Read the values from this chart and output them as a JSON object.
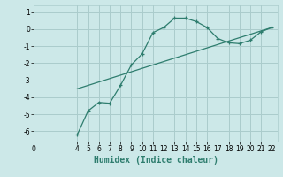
{
  "title": "",
  "xlabel": "Humidex (Indice chaleur)",
  "background_color": "#cce8e8",
  "grid_color": "#aacccc",
  "line_color": "#2e7d6e",
  "xlim": [
    0,
    22.5
  ],
  "ylim": [
    -6.6,
    1.4
  ],
  "xticks": [
    0,
    4,
    5,
    6,
    7,
    8,
    9,
    10,
    11,
    12,
    13,
    14,
    15,
    16,
    17,
    18,
    19,
    20,
    21,
    22
  ],
  "yticks": [
    -6,
    -5,
    -4,
    -3,
    -2,
    -1,
    0,
    1
  ],
  "curve1_x": [
    4,
    5,
    6,
    7,
    8,
    9,
    10,
    11,
    12,
    13,
    14,
    15,
    16,
    17,
    18,
    19,
    20,
    21,
    22
  ],
  "curve1_y": [
    -6.2,
    -4.8,
    -4.3,
    -4.35,
    -3.3,
    -2.1,
    -1.45,
    -0.2,
    0.1,
    0.65,
    0.65,
    0.45,
    0.1,
    -0.55,
    -0.8,
    -0.85,
    -0.65,
    -0.15,
    0.1
  ],
  "curve2_x": [
    4,
    22
  ],
  "curve2_y": [
    -3.5,
    0.1
  ],
  "xlabel_fontsize": 7,
  "tick_fontsize": 5.5
}
